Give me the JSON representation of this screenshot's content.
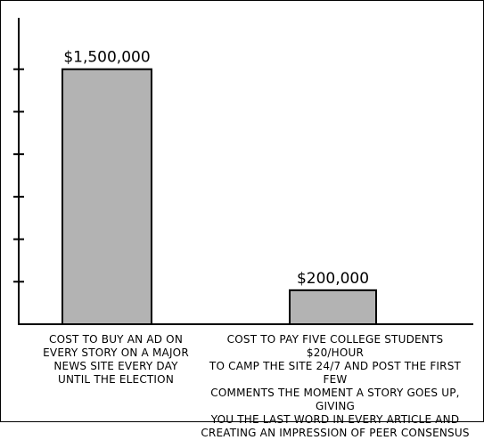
{
  "chart_data": {
    "type": "bar",
    "categories": [
      "COST TO BUY AN AD ON\nEVERY STORY ON A MAJOR\nNEWS SITE EVERY DAY\nUNTIL THE ELECTION",
      "COST TO PAY FIVE COLLEGE STUDENTS $20/HOUR\nTO CAMP THE SITE 24/7 AND POST THE FIRST FEW\nCOMMENTS THE MOMENT A STORY GOES UP, GIVING\nYOU THE LAST WORD IN EVERY ARTICLE AND\nCREATING AN IMPRESSION OF PEER CONSENSUS"
    ],
    "values": [
      1500000,
      200000
    ],
    "data_labels": [
      "$1,500,000",
      "$200,000"
    ],
    "ylim": [
      0,
      1750000
    ],
    "y_ticks": [
      250000,
      500000,
      750000,
      1000000,
      1250000,
      1500000
    ],
    "bar_color": "#b3b3b3",
    "grid": false,
    "y_tick_labels": false
  }
}
